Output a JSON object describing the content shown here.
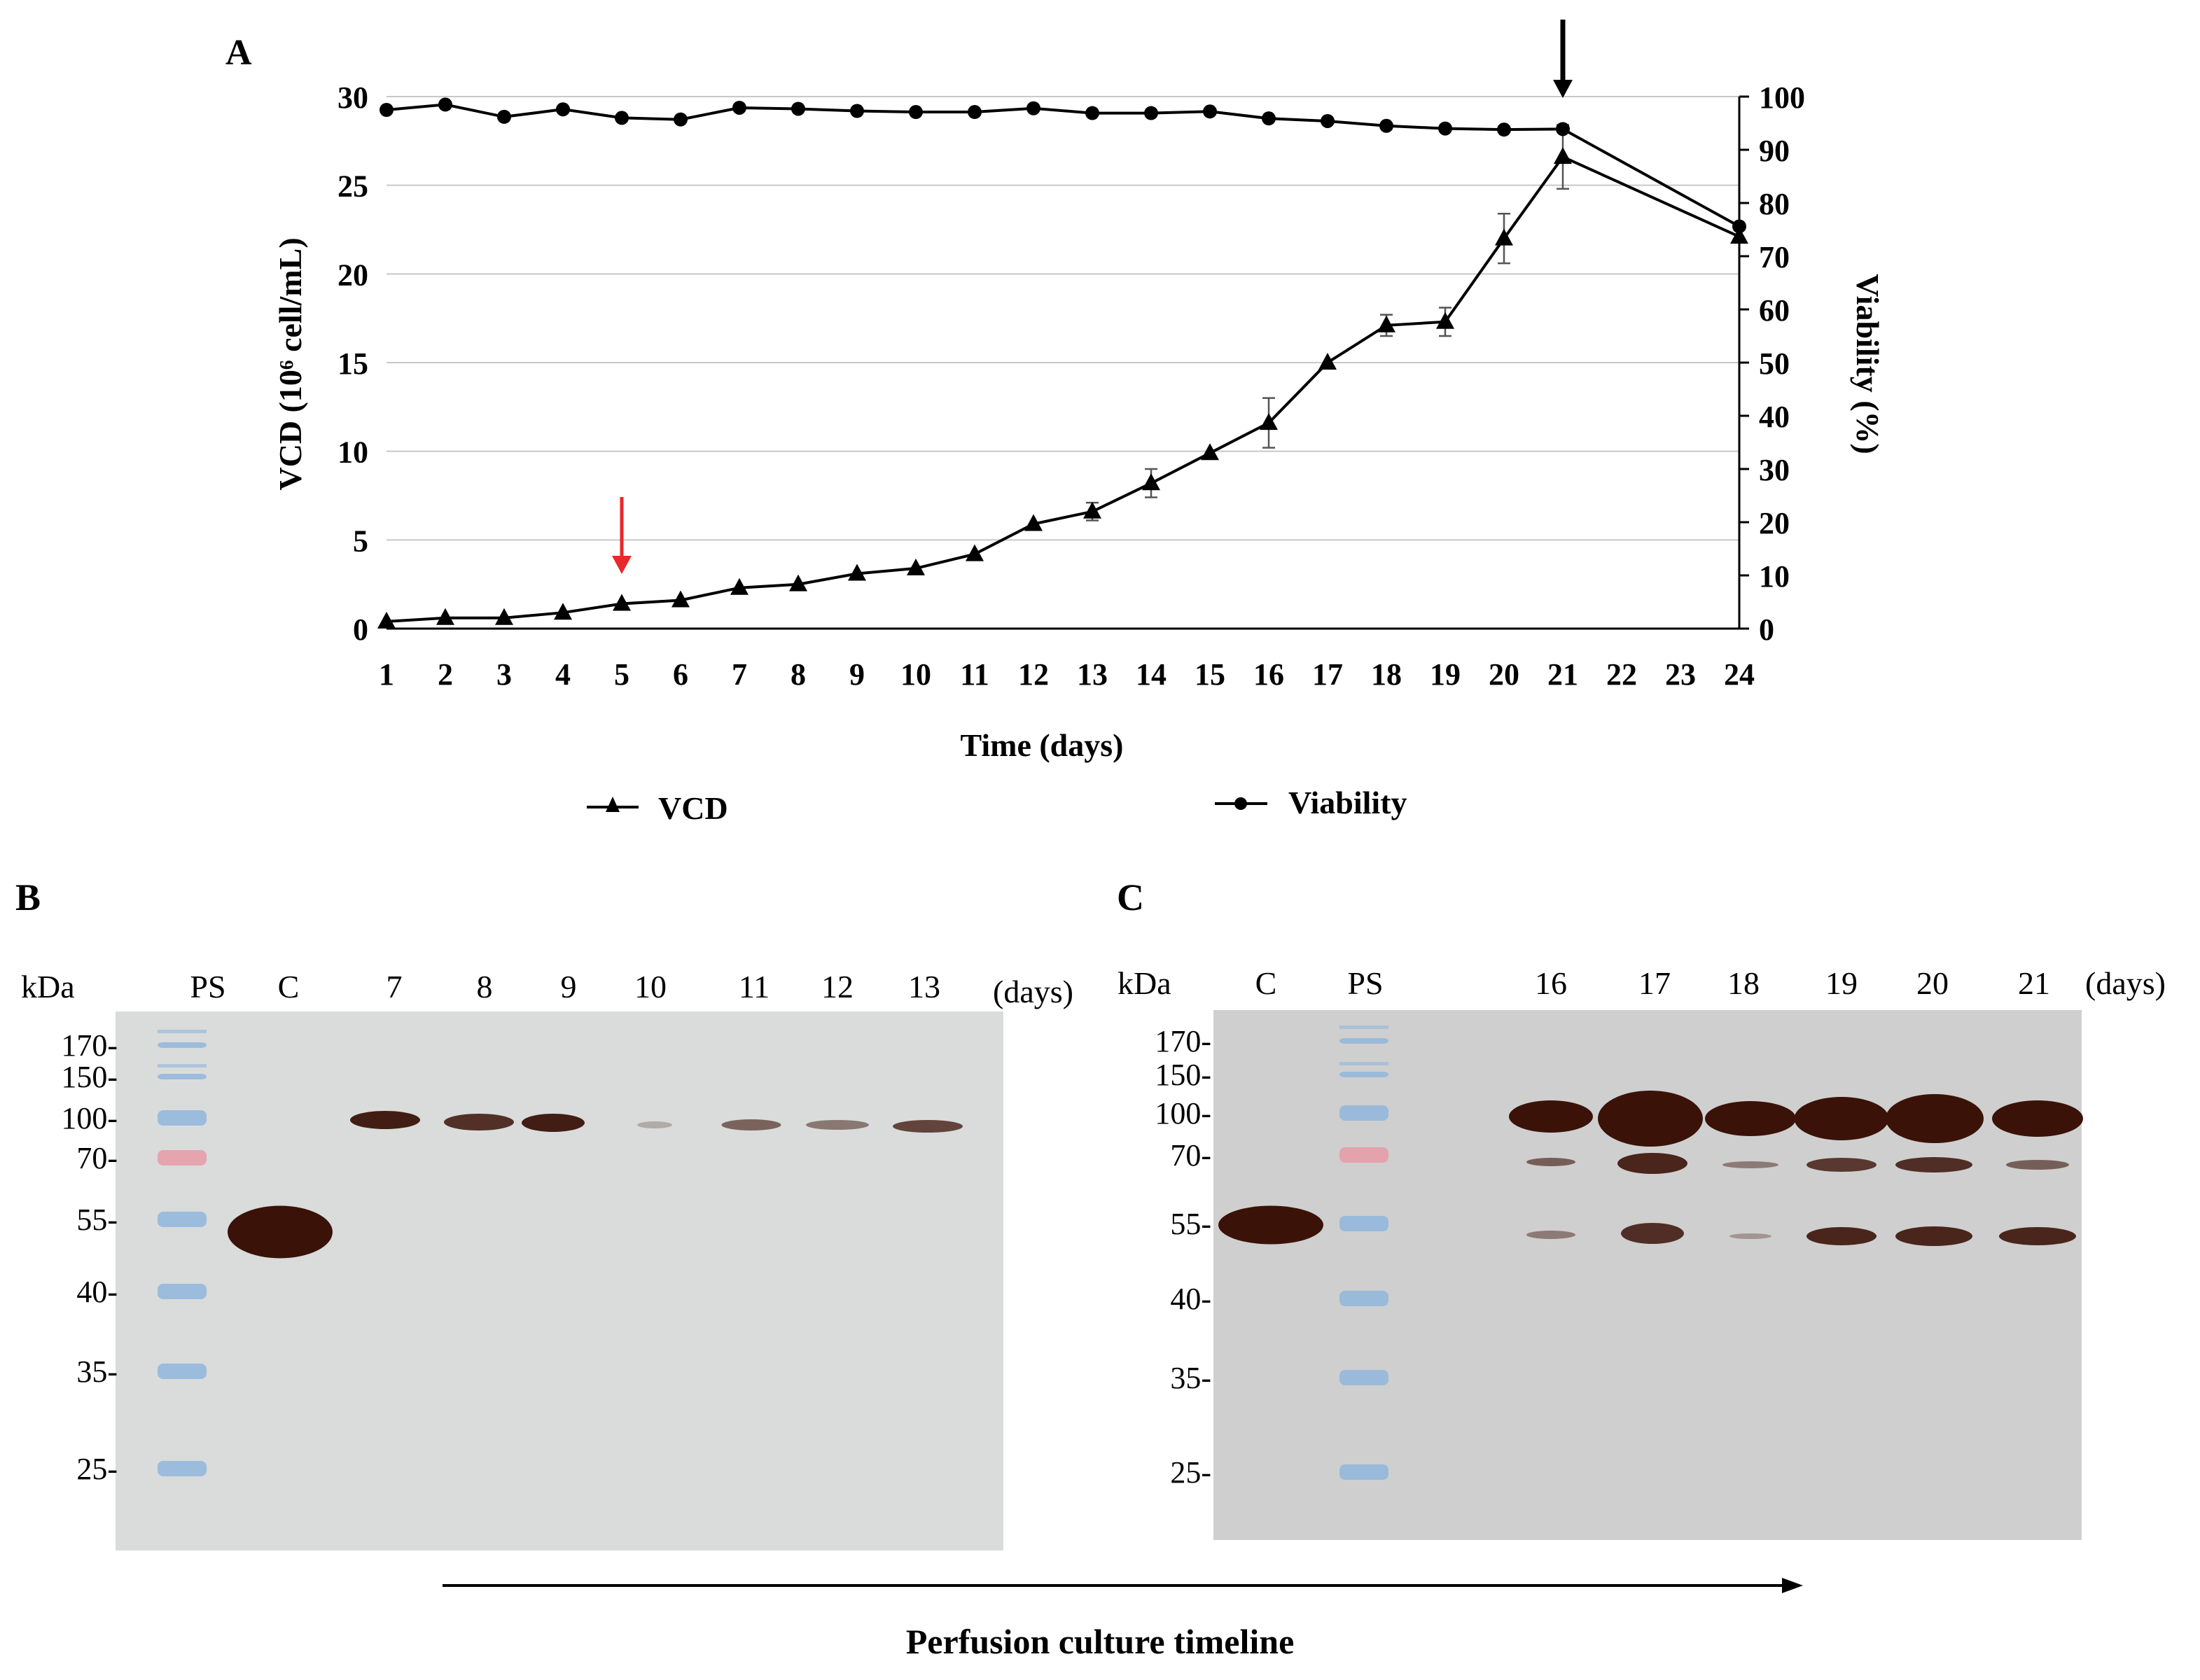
{
  "panels": {
    "A": {
      "label": "A"
    },
    "B": {
      "label": "B",
      "kda_label": "kDa",
      "lanes": [
        "PS",
        "C",
        "7",
        "8",
        "9",
        "10",
        "11",
        "12",
        "13"
      ],
      "days_label": "(days)",
      "mw_markers": [
        "170-",
        "150-",
        "100-",
        "70-",
        "55-",
        "40-",
        "35-",
        "25-"
      ]
    },
    "C": {
      "label": "C",
      "kda_label": "kDa",
      "lanes": [
        "C",
        "PS",
        "16",
        "17",
        "18",
        "19",
        "20",
        "21"
      ],
      "days_label": "(days)",
      "mw_markers": [
        "170-",
        "150-",
        "100-",
        "70-",
        "55-",
        "40-",
        "35-",
        "25-"
      ]
    }
  },
  "timeline": {
    "label": "Perfusion culture timeline"
  },
  "legend": {
    "vcd": "VCD",
    "viability": "Viability"
  },
  "colors": {
    "axis": "#000000",
    "grid": "#c8c8c8",
    "red_arrow": "#e8282a",
    "black_arrow": "#000000",
    "blot_b": "#d9dcdb",
    "blot_c": "#cfcfcf",
    "band": "#3a1208",
    "ladder_blue": "#8fb6dc",
    "ladder_red": "#e79aa6"
  },
  "chart_data": {
    "type": "line",
    "title": "",
    "xlabel": "Time (days)",
    "ylabel": "VCD (10⁶ cell/mL)",
    "y2label": "Viability (%)",
    "categories": [
      "1",
      "2",
      "3",
      "4",
      "5",
      "6",
      "7",
      "8",
      "9",
      "10",
      "11",
      "12",
      "13",
      "14",
      "15",
      "16",
      "17",
      "18",
      "19",
      "20",
      "21",
      "22",
      "23",
      "24"
    ],
    "x_ticks": [
      "1",
      "2",
      "3",
      "4",
      "5",
      "6",
      "7",
      "8",
      "9",
      "10",
      "11",
      "12",
      "13",
      "14",
      "15",
      "16",
      "17",
      "18",
      "19",
      "20",
      "21",
      "22",
      "23",
      "24"
    ],
    "y_ticks": [
      "0",
      "5",
      "10",
      "15",
      "20",
      "25",
      "30"
    ],
    "y2_ticks": [
      "0",
      "10",
      "20",
      "30",
      "40",
      "50",
      "60",
      "70",
      "80",
      "90",
      "100"
    ],
    "ylim": [
      0,
      30
    ],
    "y2lim": [
      0,
      100
    ],
    "grid": true,
    "series": [
      {
        "name": "VCD",
        "axis": "left",
        "marker": "triangle",
        "x": [
          1,
          2,
          3,
          4,
          5,
          6,
          7,
          8,
          9,
          10,
          11,
          12,
          13,
          14,
          15,
          16,
          17,
          18,
          19,
          20,
          21,
          24
        ],
        "values": [
          0.4,
          0.6,
          0.6,
          0.9,
          1.4,
          1.6,
          2.3,
          2.5,
          3.1,
          3.4,
          4.2,
          5.9,
          6.6,
          8.2,
          9.9,
          11.6,
          15.0,
          17.1,
          17.3,
          22.0,
          26.6,
          22.1
        ],
        "errors": [
          0,
          0,
          0,
          0,
          0,
          0,
          0,
          0,
          0,
          0,
          0,
          0,
          0.5,
          0.8,
          0,
          1.4,
          0,
          0.6,
          0.8,
          1.4,
          1.8,
          0
        ]
      },
      {
        "name": "Viability",
        "axis": "right",
        "marker": "circle",
        "x": [
          1,
          2,
          3,
          4,
          5,
          6,
          7,
          8,
          9,
          10,
          11,
          12,
          13,
          14,
          15,
          16,
          17,
          18,
          19,
          20,
          21,
          24
        ],
        "values": [
          97.5,
          98.5,
          96.2,
          97.6,
          96.0,
          95.7,
          97.9,
          97.7,
          97.3,
          97.1,
          97.1,
          97.8,
          96.9,
          96.9,
          97.2,
          95.9,
          95.4,
          94.5,
          94.0,
          93.8,
          93.9,
          75.6
        ],
        "errors": [
          0,
          0,
          0,
          0,
          0,
          0,
          0,
          0,
          0,
          0,
          0,
          0,
          0,
          0,
          0,
          0,
          0,
          0,
          0,
          0,
          0,
          0
        ]
      }
    ],
    "annotations": [
      {
        "type": "arrow",
        "color": "red",
        "at_x": 5,
        "direction": "down"
      },
      {
        "type": "arrow",
        "color": "black",
        "at_x": 21,
        "direction": "down"
      }
    ]
  }
}
